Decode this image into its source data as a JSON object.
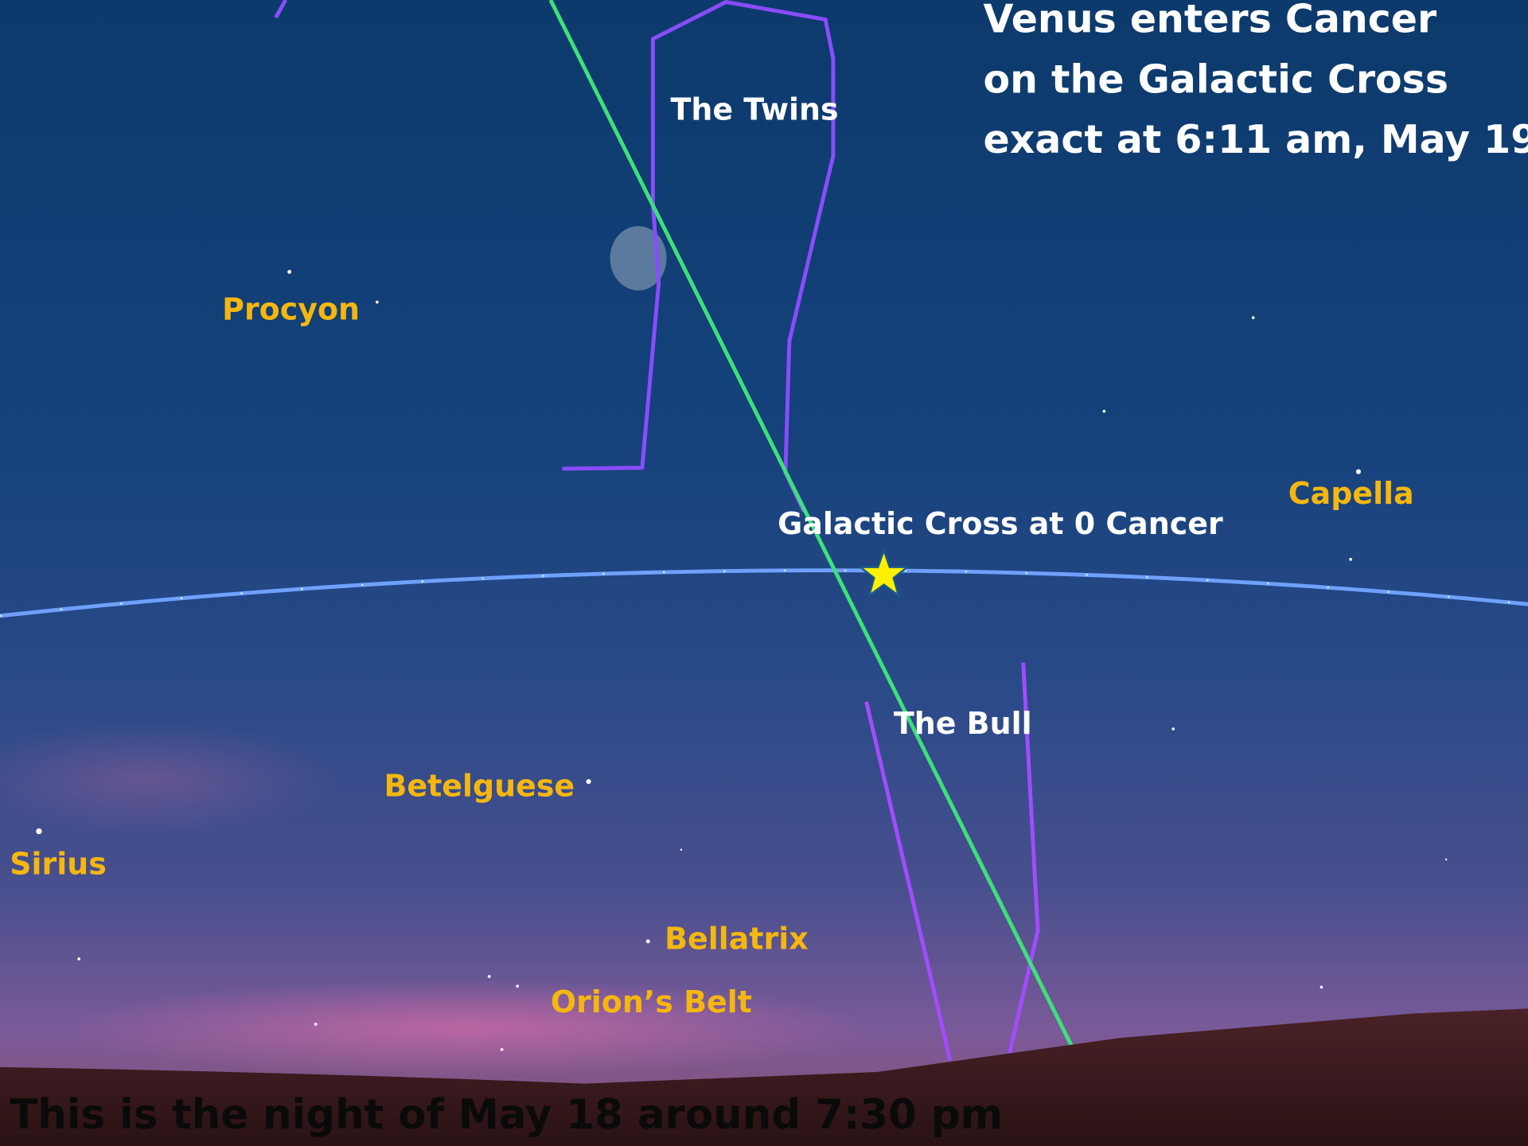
{
  "title": {
    "lines": [
      "Venus enters Cancer",
      "on the Galactic Cross",
      "exact at 6:11 am, May 19"
    ]
  },
  "constellations": [
    "The Twins",
    "The Bull"
  ],
  "marker_label": "Galactic Cross at 0 Cancer",
  "stars": [
    "Procyon",
    "Capella",
    "Betelguese",
    "Sirius",
    "Bellatrix",
    "Orion’s Belt"
  ],
  "caption": "This is the night of May 18 around 7:30 pm"
}
